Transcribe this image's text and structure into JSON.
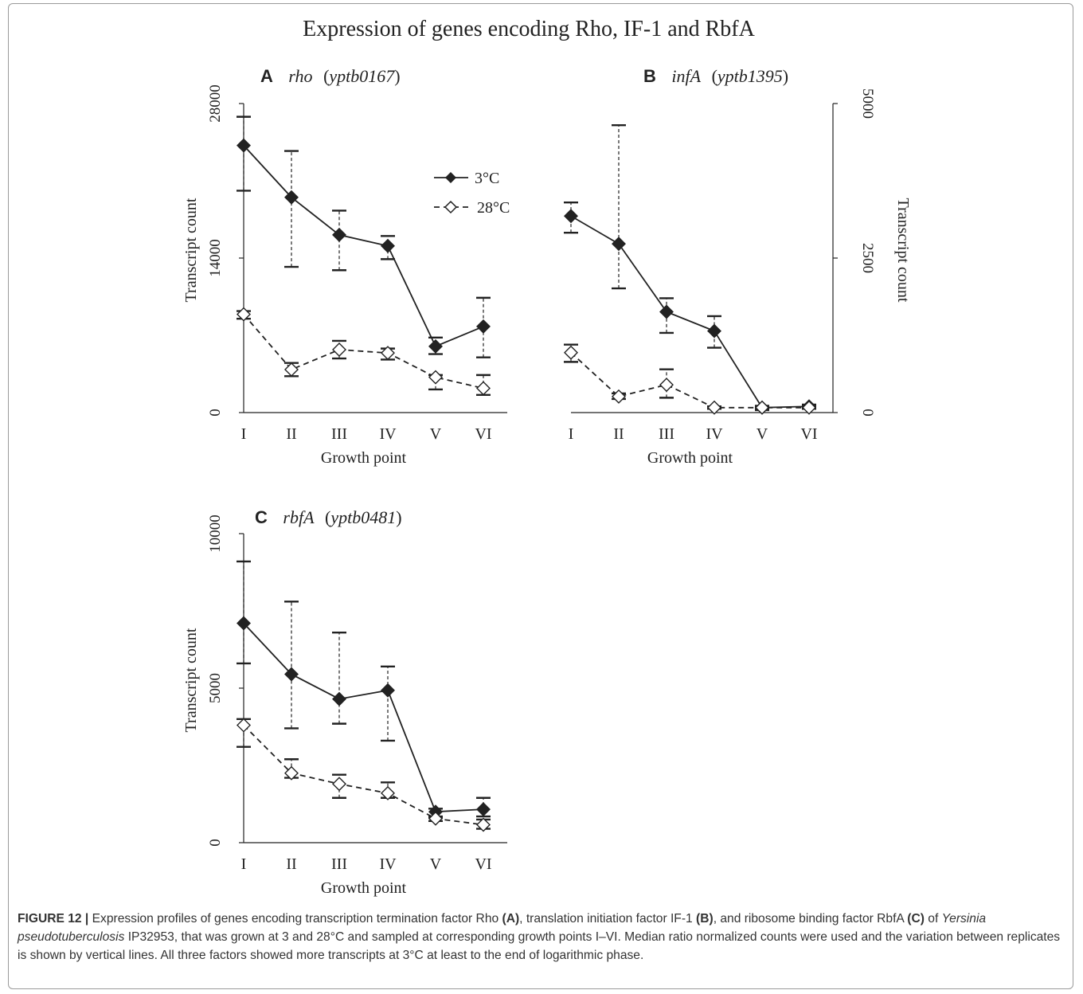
{
  "title": "Expression of genes encoding Rho, IF-1 and RbfA",
  "legend": {
    "series_3c": "3°C",
    "series_28c": "28°C"
  },
  "chart_data": [
    {
      "type": "line",
      "panel_letter": "A",
      "gene": "rho",
      "locus": "yptb0167",
      "xlabel": "Growth point",
      "ylabel": "Transcript count",
      "ylabel_side": "left",
      "x": [
        "I",
        "II",
        "III",
        "IV",
        "V",
        "VI"
      ],
      "ylim": [
        0,
        28000
      ],
      "yticks": [
        0,
        14000,
        28000
      ],
      "series": [
        {
          "name": "3°C",
          "values": [
            24200,
            19500,
            16100,
            15100,
            6000,
            7800
          ],
          "err_low": [
            20100,
            13200,
            12900,
            13900,
            5300,
            5000
          ],
          "err_high": [
            26800,
            23700,
            18300,
            16000,
            6800,
            10400
          ]
        },
        {
          "name": "28°C",
          "values": [
            8900,
            3900,
            5700,
            5400,
            3200,
            2200
          ],
          "err_low": [
            8500,
            3300,
            4900,
            4800,
            2100,
            1600
          ],
          "err_high": [
            9200,
            4500,
            6500,
            5800,
            3400,
            3400
          ]
        }
      ]
    },
    {
      "type": "line",
      "panel_letter": "B",
      "gene": "infA",
      "locus": "yptb1395",
      "xlabel": "Growth point",
      "ylabel": "Transcript count",
      "ylabel_side": "right",
      "x": [
        "I",
        "II",
        "III",
        "IV",
        "V",
        "VI"
      ],
      "ylim": [
        0,
        5000
      ],
      "yticks": [
        0,
        2500,
        5000
      ],
      "series": [
        {
          "name": "3°C",
          "values": [
            3180,
            2730,
            1630,
            1320,
            80,
            100
          ],
          "err_low": [
            2910,
            2010,
            1290,
            1050,
            40,
            60
          ],
          "err_high": [
            3400,
            4650,
            1850,
            1560,
            110,
            130
          ]
        },
        {
          "name": "28°C",
          "values": [
            970,
            260,
            450,
            80,
            80,
            80
          ],
          "err_low": [
            820,
            220,
            240,
            60,
            60,
            60
          ],
          "err_high": [
            1100,
            310,
            700,
            100,
            100,
            100
          ]
        }
      ]
    },
    {
      "type": "line",
      "panel_letter": "C",
      "gene": "rbfA",
      "locus": "yptb0481",
      "xlabel": "Growth point",
      "ylabel": "Transcript count",
      "ylabel_side": "left",
      "x": [
        "I",
        "II",
        "III",
        "IV",
        "V",
        "VI"
      ],
      "ylim": [
        0,
        10000
      ],
      "yticks": [
        0,
        5000,
        10000
      ],
      "series": [
        {
          "name": "3°C",
          "values": [
            7100,
            5450,
            4650,
            4930,
            1000,
            1080
          ],
          "err_low": [
            5800,
            3700,
            3850,
            3300,
            800,
            850
          ],
          "err_high": [
            9100,
            7800,
            6800,
            5700,
            1100,
            1450
          ]
        },
        {
          "name": "28°C",
          "values": [
            3800,
            2250,
            1900,
            1600,
            780,
            580
          ],
          "err_low": [
            3100,
            2100,
            1450,
            1450,
            700,
            450
          ],
          "err_high": [
            4000,
            2700,
            2200,
            1950,
            850,
            750
          ]
        }
      ]
    }
  ],
  "caption": {
    "label": "FIGURE 12 |",
    "t1": " Expression profiles of genes encoding transcription termination factor Rho ",
    "r1": "(A)",
    "t2": ", translation initiation factor IF-1 ",
    "r2": "(B)",
    "t3": ", and ribosome binding factor RbfA ",
    "r3": "(C)",
    "t4": " of ",
    "organism": "Yersinia pseudotuberculosis",
    "t5": " IP32953, that was grown at 3 and 28°C and sampled at corresponding growth points I–VI. Median ratio normalized counts were used and the variation between replicates is shown by vertical lines. All three factors showed more transcripts at 3°C at least to the end of logarithmic phase."
  }
}
